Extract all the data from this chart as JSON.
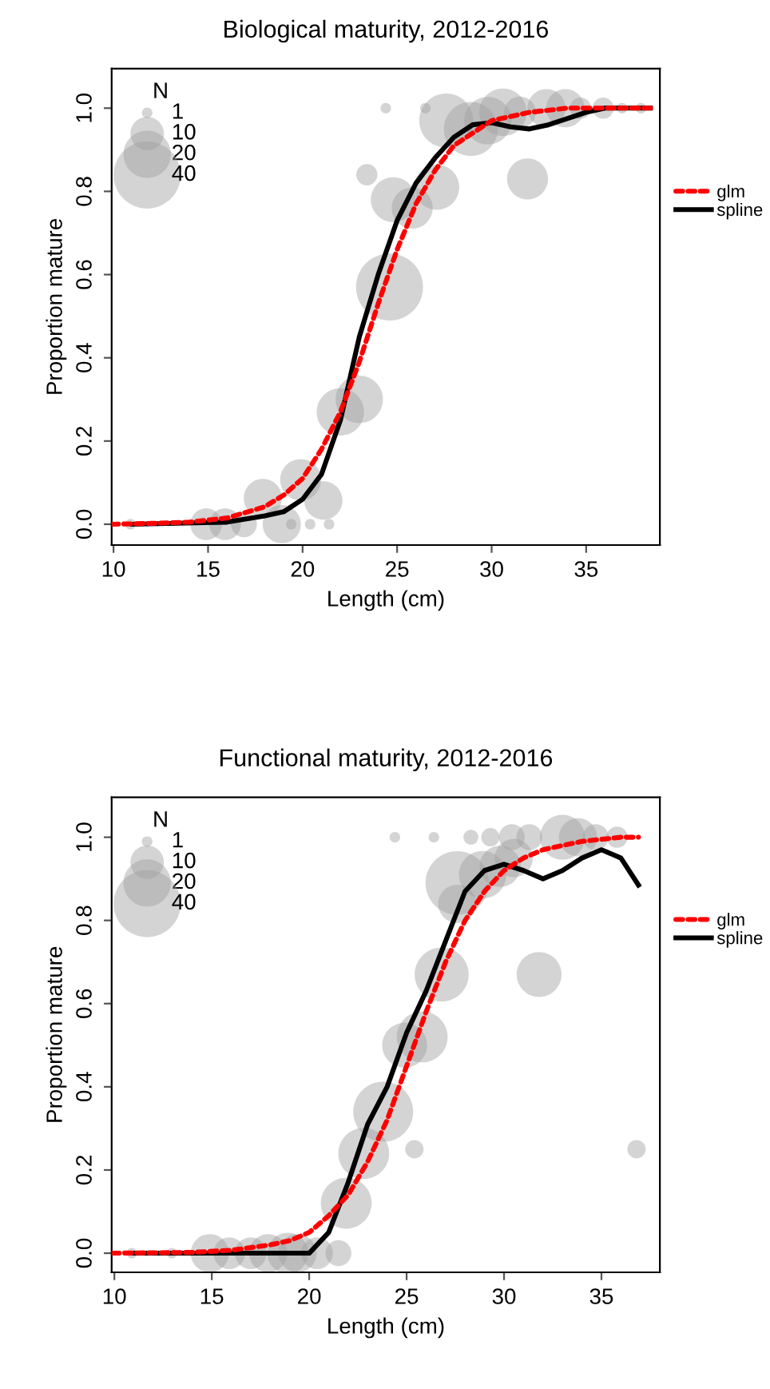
{
  "chart_data": [
    {
      "type": "bubble",
      "title": "Biological maturity, 2012-2016",
      "xlabel": "Length (cm)",
      "ylabel": "Proportion mature",
      "legend_title": "N",
      "size_legend": [
        1,
        10,
        20,
        40
      ],
      "legend": "right",
      "grid": false,
      "xlim": [
        9.9,
        38.9
      ],
      "ylim": [
        -0.05,
        1.095
      ],
      "xticks": [
        10,
        15,
        20,
        25,
        30,
        35
      ],
      "yticks": [
        {
          "value": 0,
          "label": "0.0"
        },
        {
          "value": 0.2,
          "label": "0.2"
        },
        {
          "value": 0.4,
          "label": "0.4"
        },
        {
          "value": 0.6,
          "label": "0.6"
        },
        {
          "value": 0.8,
          "label": "0.8"
        },
        {
          "value": 1,
          "label": "1.0"
        }
      ],
      "series": [
        {
          "color": "#a0a0a0",
          "x": [
            10.9,
            14.9,
            15.9,
            16.9,
            17.9,
            18.9,
            19.4,
            19.9,
            20.4,
            21.1,
            21.4,
            22.0,
            23.0,
            24.6,
            23.4,
            24.8,
            25.8,
            27.1,
            24.4,
            26.5,
            27.6,
            28.9,
            29.8,
            30.6,
            31.5,
            31.9,
            32.9,
            33.9,
            34.7,
            35.9,
            36.9,
            37.9
          ],
          "values": [
            0,
            0,
            0,
            0,
            0.063,
            0,
            0,
            0.107,
            0,
            0.057,
            0,
            0.27,
            0.3,
            0.57,
            0.84,
            0.78,
            0.76,
            0.81,
            1,
            1,
            0.97,
            0.95,
            0.97,
            0.99,
            0.99,
            0.83,
            1,
            1,
            1,
            1,
            1,
            1
          ],
          "sizes": [
            1,
            9,
            9,
            6,
            13,
            13,
            1,
            15,
            1,
            13,
            1,
            20,
            20,
            40,
            4,
            18,
            15,
            18,
            1,
            1,
            26,
            26,
            20,
            20,
            9,
            15,
            13,
            13,
            4,
            4,
            1,
            1
          ]
        },
        {
          "type": "line",
          "name": "glm",
          "color": "#ff0000",
          "line_style": "dashed",
          "x": [
            9.9,
            12,
            14,
            16,
            18,
            19,
            20,
            21,
            22,
            23,
            24,
            25,
            26,
            27,
            28,
            29,
            30,
            32,
            34,
            36,
            38.4
          ],
          "values": [
            0,
            0.002,
            0.005,
            0.015,
            0.042,
            0.07,
            0.11,
            0.18,
            0.27,
            0.39,
            0.53,
            0.66,
            0.77,
            0.85,
            0.91,
            0.94,
            0.97,
            0.99,
            1.0,
            1.0,
            1.0
          ]
        },
        {
          "type": "line",
          "name": "spline",
          "color": "#000000",
          "line_style": "solid",
          "x": [
            11,
            16,
            18,
            19,
            20,
            21,
            22,
            23,
            24,
            25,
            26,
            27,
            28,
            29,
            30,
            31,
            32,
            33,
            34,
            35,
            36,
            38.4
          ],
          "values": [
            0,
            0.005,
            0.02,
            0.03,
            0.06,
            0.12,
            0.25,
            0.45,
            0.6,
            0.73,
            0.82,
            0.88,
            0.93,
            0.96,
            0.965,
            0.955,
            0.95,
            0.96,
            0.975,
            0.99,
            1.0,
            1.0
          ]
        }
      ]
    },
    {
      "type": "bubble",
      "title": "Functional maturity, 2012-2016",
      "xlabel": "Length (cm)",
      "ylabel": "Proportion mature",
      "legend_title": "N",
      "size_legend": [
        1,
        10,
        20,
        40
      ],
      "legend": "right",
      "grid": false,
      "xlim": [
        9.86,
        38.0
      ],
      "ylim": [
        -0.046,
        1.096
      ],
      "xticks": [
        10,
        15,
        20,
        25,
        30,
        35
      ],
      "yticks": [
        {
          "value": 0,
          "label": "0.0"
        },
        {
          "value": 0.2,
          "label": "0.2"
        },
        {
          "value": 0.4,
          "label": "0.4"
        },
        {
          "value": 0.6,
          "label": "0.6"
        },
        {
          "value": 0.8,
          "label": "0.8"
        },
        {
          "value": 1,
          "label": "1.0"
        }
      ],
      "series": [
        {
          "color": "#a0a0a0",
          "x": [
            10.9,
            12.95,
            14.9,
            15.9,
            17.0,
            17.9,
            18.9,
            19.4,
            20.4,
            21.5,
            21.9,
            22.8,
            23.8,
            25.4,
            24.9,
            25.8,
            26.8,
            27.6,
            27.6,
            28.9,
            29.8,
            30.5,
            31.8,
            24.4,
            26.4,
            28.3,
            29.3,
            30.4,
            31.3,
            33.0,
            33.8,
            34.7,
            35.8,
            36.8
          ],
          "values": [
            0,
            0,
            0,
            0,
            0,
            0,
            0,
            0,
            0,
            0,
            0.12,
            0.24,
            0.34,
            0.25,
            0.5,
            0.52,
            0.67,
            0.84,
            0.89,
            0.91,
            0.93,
            0.95,
            0.67,
            1,
            1,
            1,
            1,
            1,
            1,
            1,
            1,
            1,
            1,
            0.25
          ],
          "sizes": [
            1,
            1,
            13,
            9,
            9,
            13,
            15,
            13,
            9,
            6,
            23,
            23,
            32,
            3,
            18,
            23,
            26,
            13,
            36,
            20,
            15,
            13,
            18,
            1,
            1,
            2,
            3,
            6,
            6,
            18,
            13,
            6,
            4,
            3
          ]
        },
        {
          "type": "line",
          "name": "glm",
          "color": "#ff0000",
          "line_style": "dashed",
          "x": [
            9.9,
            12,
            14,
            16,
            18,
            19,
            20,
            21,
            22,
            23,
            24,
            25,
            26,
            27,
            28,
            29,
            30,
            31,
            32,
            34,
            36,
            36.9
          ],
          "values": [
            0,
            0.001,
            0.002,
            0.007,
            0.02,
            0.03,
            0.05,
            0.09,
            0.14,
            0.22,
            0.32,
            0.45,
            0.58,
            0.7,
            0.8,
            0.87,
            0.92,
            0.95,
            0.97,
            0.99,
            1.0,
            1.0
          ]
        },
        {
          "type": "line",
          "name": "spline",
          "color": "#000000",
          "line_style": "solid",
          "x": [
            11,
            20,
            21,
            22,
            23,
            24,
            25,
            26,
            27,
            28,
            29,
            30,
            31,
            32,
            33,
            34,
            35,
            36,
            36.9
          ],
          "values": [
            0,
            0,
            0.05,
            0.17,
            0.31,
            0.4,
            0.53,
            0.63,
            0.75,
            0.87,
            0.92,
            0.935,
            0.92,
            0.9,
            0.92,
            0.95,
            0.97,
            0.95,
            0.885
          ]
        }
      ]
    }
  ]
}
